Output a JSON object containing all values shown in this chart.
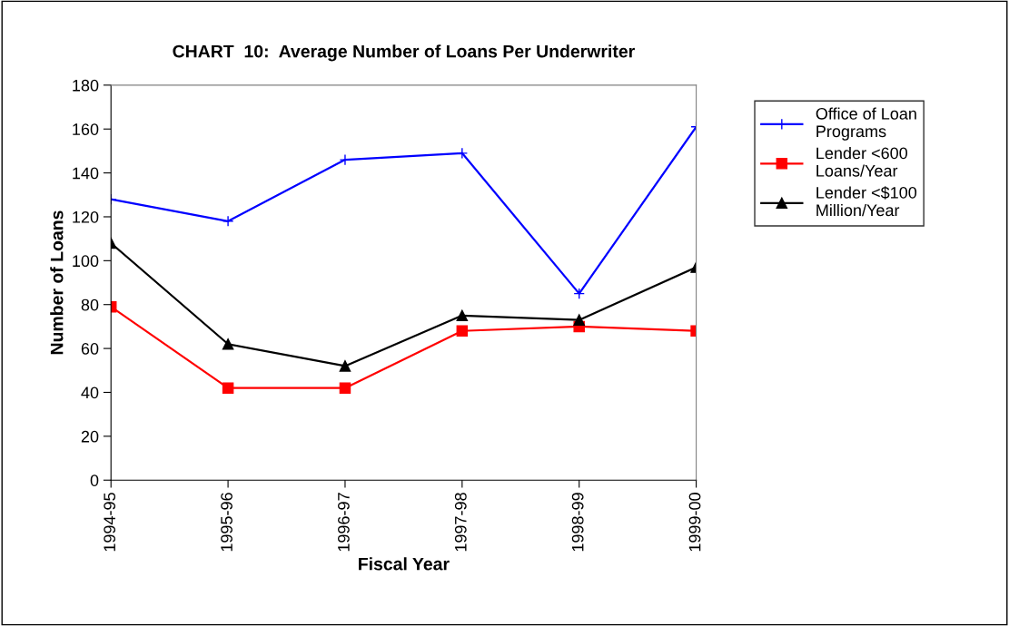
{
  "chart_data": {
    "type": "line",
    "title": "CHART  10:  Average Number of Loans Per Underwriter",
    "xlabel": "Fiscal Year",
    "ylabel": "Number of Loans",
    "categories": [
      "1994-95",
      "1995-96",
      "1996-97",
      "1997-98",
      "1998-99",
      "1999-00"
    ],
    "series": [
      {
        "name": "Office of Loan\nPrograms",
        "color": "#0000ff",
        "marker": "cross",
        "values": [
          128,
          118,
          146,
          149,
          85,
          161
        ]
      },
      {
        "name": "Lender <600\nLoans/Year",
        "color": "#ff0000",
        "marker": "square",
        "values": [
          79,
          42,
          42,
          68,
          70,
          68
        ]
      },
      {
        "name": "Lender <$100\nMillion/Year",
        "color": "#000000",
        "marker": "triangle",
        "values": [
          108,
          62,
          52,
          75,
          73,
          97
        ]
      }
    ],
    "ylim": [
      0,
      180
    ],
    "yticks": [
      0,
      20,
      40,
      60,
      80,
      100,
      120,
      140,
      160,
      180
    ],
    "grid": false,
    "legend": "right",
    "line_style": "solid"
  }
}
